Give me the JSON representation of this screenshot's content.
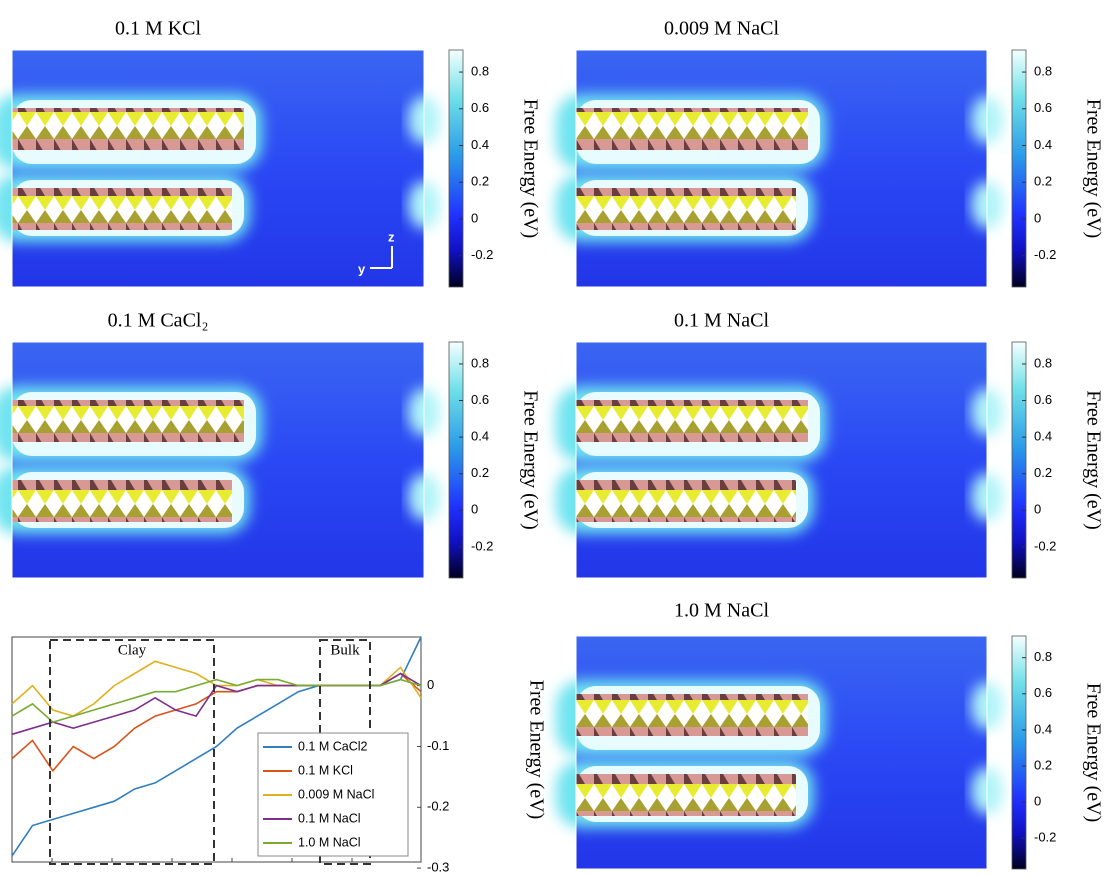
{
  "heatmaps": [
    {
      "title": "0.1 M KCl",
      "axes_labels": [
        "z",
        "y"
      ],
      "colorbar": {
        "label": "Free Energy (eV)",
        "clim": [
          -0.37,
          0.92
        ],
        "ticks": [
          -0.2,
          0,
          0.2,
          0.4,
          0.6,
          0.8
        ]
      }
    },
    {
      "title": "0.009 M NaCl",
      "colorbar": {
        "label": "Free Energy (eV)",
        "clim": [
          -0.37,
          0.92
        ],
        "ticks": [
          -0.2,
          0,
          0.2,
          0.4,
          0.6,
          0.8
        ]
      }
    },
    {
      "title": "0.1 M CaCl₂",
      "colorbar": {
        "label": "Free Energy (eV)",
        "clim": [
          -0.37,
          0.92
        ],
        "ticks": [
          -0.2,
          0,
          0.2,
          0.4,
          0.6,
          0.8
        ]
      }
    },
    {
      "title": "0.1 M NaCl",
      "colorbar": {
        "label": "Free Energy (eV)",
        "clim": [
          -0.37,
          0.92
        ],
        "ticks": [
          -0.2,
          0,
          0.2,
          0.4,
          0.6,
          0.8
        ]
      }
    },
    {
      "title": "1.0 M NaCl",
      "colorbar": {
        "label": "Free Energy (eV)",
        "clim": [
          -0.37,
          0.92
        ],
        "ticks": [
          -0.2,
          0,
          0.2,
          0.4,
          0.6,
          0.8
        ]
      }
    }
  ],
  "chart_data": {
    "type": "line",
    "y_label": "Free Energy (eV)",
    "annotations": [
      "Clay",
      "Bulk"
    ],
    "ylim": [
      -0.29,
      0.08
    ],
    "yticks": [
      0,
      -0.1,
      -0.2,
      -0.3
    ],
    "series": [
      {
        "name": "0.1 M CaCl2",
        "color": "#2f7fc1",
        "values": [
          -0.28,
          -0.23,
          -0.22,
          -0.21,
          -0.2,
          -0.19,
          -0.17,
          -0.16,
          -0.14,
          -0.12,
          -0.1,
          -0.07,
          -0.05,
          -0.03,
          -0.01,
          0,
          0,
          0,
          0,
          0.01,
          0.08
        ]
      },
      {
        "name": "0.1 M KCl",
        "color": "#d95319",
        "values": [
          -0.12,
          -0.09,
          -0.14,
          -0.1,
          -0.12,
          -0.1,
          -0.07,
          -0.05,
          -0.04,
          -0.03,
          -0.01,
          -0.01,
          0,
          0,
          0,
          0,
          0,
          0,
          0,
          0.02,
          -0.01
        ]
      },
      {
        "name": "0.009 M NaCl",
        "color": "#e0b020",
        "values": [
          -0.03,
          0,
          -0.04,
          -0.05,
          -0.03,
          0,
          0.02,
          0.04,
          0.03,
          0.02,
          0,
          0,
          0.01,
          0,
          0,
          0,
          0,
          0,
          0,
          0.03,
          -0.02
        ]
      },
      {
        "name": "0.1 M NaCl",
        "color": "#7e2f8e",
        "values": [
          -0.08,
          -0.07,
          -0.06,
          -0.07,
          -0.06,
          -0.05,
          -0.04,
          -0.02,
          -0.04,
          -0.05,
          0,
          -0.01,
          0,
          0,
          0,
          0,
          0,
          0,
          0,
          0.02,
          0
        ]
      },
      {
        "name": "1.0 M NaCl",
        "color": "#77ac30",
        "values": [
          -0.05,
          -0.03,
          -0.06,
          -0.05,
          -0.04,
          -0.03,
          -0.02,
          -0.01,
          -0.01,
          0,
          0.01,
          0,
          0.01,
          0.01,
          0,
          0,
          0,
          0,
          0,
          0.01,
          0
        ]
      }
    ]
  }
}
